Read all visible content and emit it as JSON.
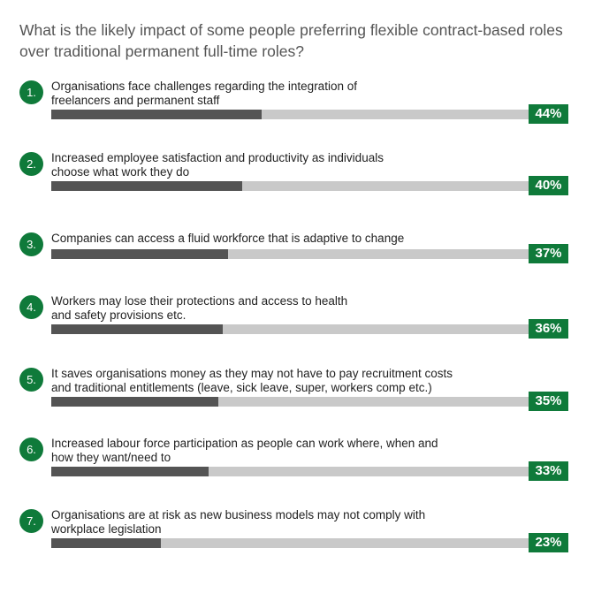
{
  "chart_data": {
    "type": "bar",
    "title": "What is the likely impact of some people preferring flexible contract-based roles over traditional permanent full-time roles?",
    "xlim": [
      0,
      100
    ],
    "items": [
      {
        "rank": "1.",
        "label": "Organisations face challenges regarding the integration of\nfreelancers and permanent staff",
        "value": 44,
        "display": "44%"
      },
      {
        "rank": "2.",
        "label": "Increased employee satisfaction and productivity as individuals\nchoose what work they do",
        "value": 40,
        "display": "40%"
      },
      {
        "rank": "3.",
        "label": "Companies can access a fluid workforce that is adaptive to change",
        "value": 37,
        "display": "37%"
      },
      {
        "rank": "4.",
        "label": "Workers may lose their protections and access to health\nand safety provisions etc.",
        "value": 36,
        "display": "36%"
      },
      {
        "rank": "5.",
        "label": "It saves organisations money as they may not have to pay recruitment costs\nand traditional entitlements (leave, sick leave, super, workers comp etc.)",
        "value": 35,
        "display": "35%"
      },
      {
        "rank": "6.",
        "label": "Increased labour force participation as people can work where, when and\nhow they want/need to",
        "value": 33,
        "display": "33%"
      },
      {
        "rank": "7.",
        "label": "Organisations are at risk as new business models may not comply with\nworkplace legislation",
        "value": 23,
        "display": "23%"
      }
    ],
    "colors": {
      "accent": "#0f7a3a",
      "fill": "#545454",
      "track": "#c9c9c9",
      "title": "#555555"
    }
  }
}
